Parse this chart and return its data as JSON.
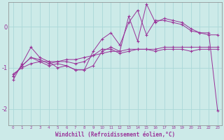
{
  "xlabel": "Windchill (Refroidissement éolien,°C)",
  "background_color": "#cceae8",
  "line_color": "#993399",
  "grid_color": "#aad8d8",
  "x_values": [
    0,
    1,
    2,
    3,
    4,
    5,
    6,
    7,
    8,
    9,
    10,
    11,
    12,
    13,
    14,
    15,
    16,
    17,
    18,
    19,
    20,
    21,
    22,
    23
  ],
  "series": [
    [
      -1.15,
      -1.0,
      -0.9,
      -0.85,
      -0.85,
      -0.85,
      -0.8,
      -0.8,
      -0.75,
      -0.7,
      -0.65,
      -0.6,
      -0.6,
      -0.55,
      -0.55,
      -0.55,
      -0.55,
      -0.5,
      -0.5,
      -0.5,
      -0.5,
      -0.5,
      -0.5,
      -0.5
    ],
    [
      -1.2,
      -0.95,
      -0.75,
      -0.8,
      -0.9,
      -0.85,
      -0.85,
      -0.9,
      -0.85,
      -0.7,
      -0.55,
      -0.55,
      -0.65,
      -0.6,
      -0.55,
      -0.55,
      -0.6,
      -0.55,
      -0.55,
      -0.55,
      -0.6,
      -0.55,
      -0.55,
      -0.55
    ],
    [
      -1.3,
      -0.9,
      -0.5,
      -0.75,
      -0.85,
      -1.0,
      -0.95,
      -1.05,
      -1.05,
      -0.6,
      -0.3,
      -0.15,
      -0.45,
      0.1,
      0.4,
      -0.2,
      0.15,
      0.15,
      0.1,
      0.05,
      -0.1,
      -0.15,
      -0.2,
      -0.2
    ],
    [
      -1.2,
      -0.95,
      -0.75,
      -0.85,
      -0.95,
      -0.9,
      -0.95,
      -1.05,
      -1.05,
      -0.95,
      -0.6,
      -0.5,
      -0.6,
      0.25,
      -0.35,
      0.55,
      0.1,
      0.2,
      0.15,
      0.1,
      -0.05,
      -0.15,
      -0.15,
      -2.05
    ]
  ],
  "ylim": [
    -2.4,
    0.6
  ],
  "yticks": [
    0,
    -1,
    -2
  ],
  "ytick_labels": [
    "0",
    "-1",
    "-2"
  ],
  "xlim": [
    -0.5,
    23.5
  ],
  "xtick_labels": [
    "0",
    "1",
    "2",
    "3",
    "4",
    "5",
    "6",
    "7",
    "8",
    "9",
    "10",
    "11",
    "12",
    "13",
    "14",
    "15",
    "16",
    "17",
    "18",
    "19",
    "20",
    "21",
    "22",
    "23"
  ]
}
